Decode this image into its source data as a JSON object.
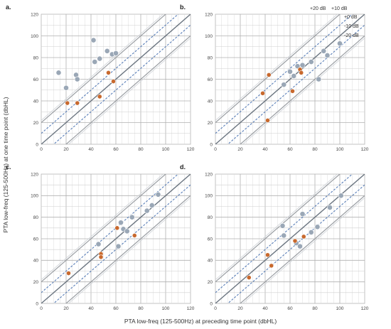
{
  "chart_data": {
    "type": "scatter",
    "xlabel": "PTA low-freq (125-500Hz) at preceding time point (dbHL)",
    "ylabel": "PTA low-freq (125-500Hz) at one time point (dbHL)",
    "xlim": [
      0,
      120
    ],
    "ylim": [
      0,
      120
    ],
    "ticks": [
      "0",
      "20",
      "40",
      "60",
      "80",
      "100",
      "120"
    ],
    "grid": true,
    "reference_lines": [
      "+20 dB",
      "+10 dB",
      "+0 dB",
      "-10 dB",
      "-20 dB"
    ],
    "reference_offsets": [
      20,
      10,
      0,
      -10,
      -20
    ],
    "series_colors": {
      "gray": "#9aa7b6",
      "orange": "#c8692e"
    },
    "line_colors": {
      "solid": "#9a9ea3",
      "center": "#6b7580",
      "dashed": "#5a7fb8"
    },
    "panels": [
      {
        "label": "a.",
        "gray": [
          [
            14,
            66
          ],
          [
            20,
            52
          ],
          [
            28,
            64
          ],
          [
            29,
            60
          ],
          [
            42,
            96
          ],
          [
            43,
            76
          ],
          [
            47,
            79
          ],
          [
            53,
            86
          ],
          [
            57,
            83
          ],
          [
            60,
            84
          ]
        ],
        "orange": [
          [
            21,
            38
          ],
          [
            29,
            38
          ],
          [
            47,
            44
          ],
          [
            54,
            66
          ],
          [
            58,
            58
          ]
        ]
      },
      {
        "label": "b.",
        "gray": [
          [
            55,
            55
          ],
          [
            60,
            67
          ],
          [
            63,
            63
          ],
          [
            66,
            72
          ],
          [
            70,
            73
          ],
          [
            77,
            76
          ],
          [
            83,
            60
          ],
          [
            87,
            86
          ],
          [
            90,
            82
          ],
          [
            100,
            93
          ]
        ],
        "orange": [
          [
            38,
            47
          ],
          [
            42,
            22
          ],
          [
            43,
            64
          ],
          [
            62,
            49
          ],
          [
            68,
            69
          ],
          [
            69,
            66
          ]
        ]
      },
      {
        "label": "c.",
        "gray": [
          [
            46,
            55
          ],
          [
            62,
            53
          ],
          [
            64,
            75
          ],
          [
            66,
            69
          ],
          [
            69,
            67
          ],
          [
            73,
            80
          ],
          [
            85,
            86
          ],
          [
            89,
            91
          ],
          [
            94,
            101
          ]
        ],
        "orange": [
          [
            22,
            28
          ],
          [
            48,
            46
          ],
          [
            48,
            43
          ],
          [
            61,
            70
          ],
          [
            75,
            63
          ]
        ]
      },
      {
        "label": "d.",
        "gray": [
          [
            54,
            72
          ],
          [
            55,
            63
          ],
          [
            65,
            56
          ],
          [
            68,
            53
          ],
          [
            70,
            83
          ],
          [
            77,
            66
          ],
          [
            82,
            71
          ],
          [
            92,
            89
          ],
          [
            101,
            100
          ]
        ],
        "orange": [
          [
            27,
            24
          ],
          [
            42,
            45
          ],
          [
            45,
            35
          ],
          [
            64,
            58
          ],
          [
            71,
            62
          ]
        ]
      }
    ]
  }
}
